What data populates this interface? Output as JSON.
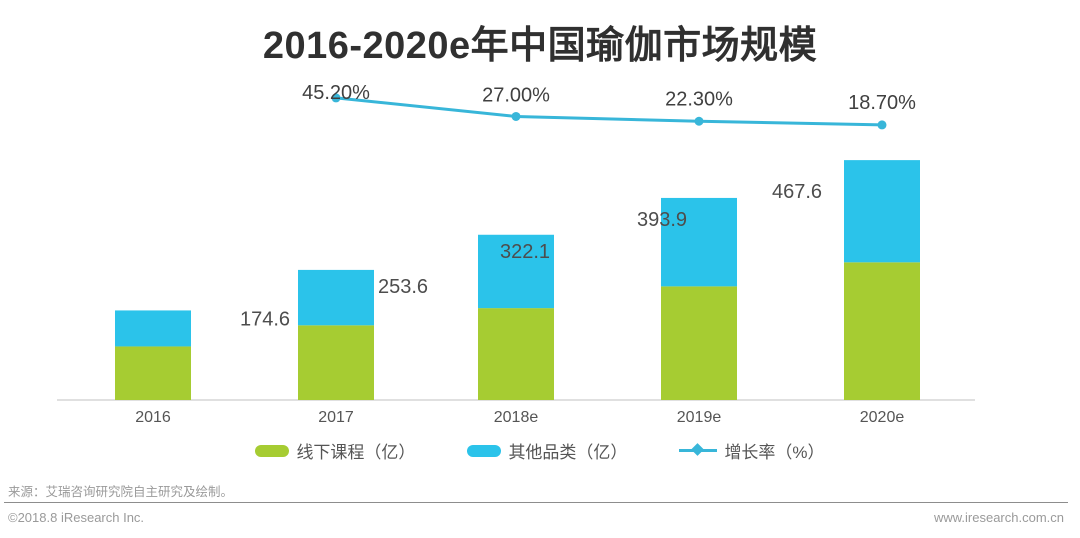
{
  "title": "2016-2020e年中国瑜伽市场规模",
  "colors": {
    "green": "#a6cc32",
    "cyan": "#2bc3ea",
    "line": "#38b6d9",
    "axis": "#e0e0e0"
  },
  "chart_data": {
    "type": "bar",
    "subtype": "stacked-bars-with-growth-line",
    "title": "2016-2020e年中国瑜伽市场规模",
    "categories": [
      "2016",
      "2017",
      "2018e",
      "2019e",
      "2020e"
    ],
    "series": [
      {
        "name": "线下课程（亿）",
        "type": "bar",
        "stack": "market",
        "color": "#a6cc32",
        "values": [
          104.4,
          145.6,
          179.1,
          221.5,
          268.4
        ]
      },
      {
        "name": "其他品类（亿）",
        "type": "bar",
        "stack": "market",
        "color": "#2bc3ea",
        "values": [
          70.2,
          108.0,
          143.0,
          172.4,
          199.2
        ]
      },
      {
        "name": "增长率（%）",
        "type": "line",
        "color": "#38b6d9",
        "categories": [
          "2017",
          "2018e",
          "2019e",
          "2020e"
        ],
        "values": [
          45.2,
          27.0,
          22.3,
          18.7
        ],
        "point_labels": [
          "45.20%",
          "27.00%",
          "22.30%",
          "18.70%"
        ]
      }
    ],
    "bar_totals": {
      "values": [
        174.6,
        253.6,
        322.1,
        393.9,
        467.6
      ],
      "labels": [
        "174.6",
        "253.6",
        "322.1",
        "393.9",
        "467.6"
      ]
    },
    "note": "Only stacked totals are labeled on the chart; per-segment split estimated from segment heights.",
    "axes": {
      "y_axis_visible": false,
      "gridlines": false
    },
    "legend_position": "bottom"
  },
  "legend": {
    "items": [
      {
        "label": "线下课程（亿）",
        "marker": "green-pill"
      },
      {
        "label": "其他品类（亿）",
        "marker": "cyan-pill"
      },
      {
        "label": "增长率（%）",
        "marker": "cyan-line-diamond"
      }
    ]
  },
  "footer": {
    "source": "来源：艾瑞咨询研究院自主研究及绘制。",
    "copyright": "©2018.8 iResearch Inc.",
    "website": "www.iresearch.com.cn"
  }
}
